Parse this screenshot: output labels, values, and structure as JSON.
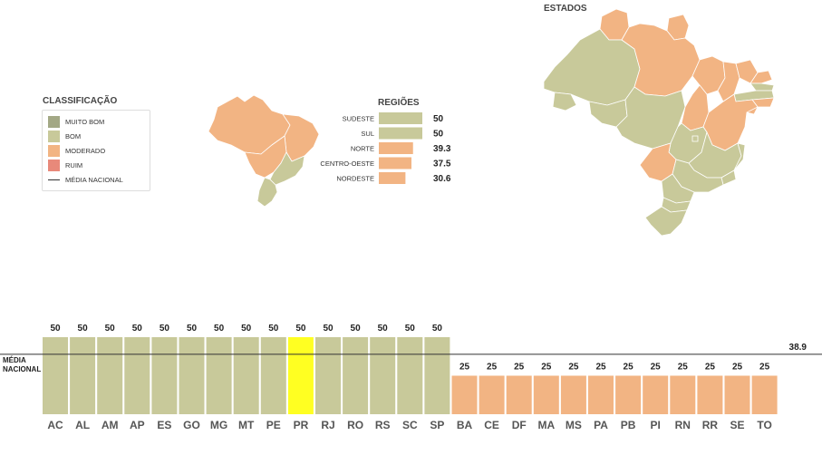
{
  "legend": {
    "title": "CLASSIFICAÇÃO",
    "items": [
      {
        "label": "MUITO BOM",
        "color": "#a3a885"
      },
      {
        "label": "BOM",
        "color": "#c8c99a"
      },
      {
        "label": "MODERADO",
        "color": "#f2b483"
      },
      {
        "label": "RUIM",
        "color": "#e8897a"
      }
    ],
    "line_label": "MÉDIA NACIONAL"
  },
  "maps": {
    "states_title": "ESTADOS"
  },
  "colors": {
    "bom": "#c8c99a",
    "moderado": "#f2b483",
    "highlight": "#ffff22",
    "bom_stroke": "#b4b688",
    "moderado_stroke": "#e0a070"
  },
  "chart_data": [
    {
      "type": "bar",
      "orientation": "horizontal",
      "title": "REGIÕES",
      "categories": [
        "SUDESTE",
        "SUL",
        "NORTE",
        "CENTRO-OESTE",
        "NORDESTE"
      ],
      "values": [
        50,
        50,
        39.3,
        37.5,
        30.6
      ],
      "value_labels": [
        "50",
        "50",
        "39.3",
        "37.5",
        "30.6"
      ],
      "classes": [
        "bom",
        "bom",
        "moderado",
        "moderado",
        "moderado"
      ],
      "xlim": [
        0,
        50
      ]
    },
    {
      "type": "bar",
      "categories": [
        "AC",
        "AL",
        "AM",
        "AP",
        "ES",
        "GO",
        "MG",
        "MT",
        "PE",
        "PR",
        "RJ",
        "RO",
        "RS",
        "SC",
        "SP",
        "BA",
        "CE",
        "DF",
        "MA",
        "MS",
        "PA",
        "PB",
        "PI",
        "RN",
        "RR",
        "SE",
        "TO"
      ],
      "values": [
        50,
        50,
        50,
        50,
        50,
        50,
        50,
        50,
        50,
        50,
        50,
        50,
        50,
        50,
        50,
        25,
        25,
        25,
        25,
        25,
        25,
        25,
        25,
        25,
        25,
        25,
        25
      ],
      "value_labels": [
        "50",
        "50",
        "50",
        "50",
        "50",
        "50",
        "50",
        "50",
        "50",
        "50",
        "50",
        "50",
        "50",
        "50",
        "50",
        "25",
        "25",
        "25",
        "25",
        "25",
        "25",
        "25",
        "25",
        "25",
        "25",
        "25",
        "25"
      ],
      "classes": [
        "bom",
        "bom",
        "bom",
        "bom",
        "bom",
        "bom",
        "bom",
        "bom",
        "bom",
        "highlight",
        "bom",
        "bom",
        "bom",
        "bom",
        "bom",
        "moderado",
        "moderado",
        "moderado",
        "moderado",
        "moderado",
        "moderado",
        "moderado",
        "moderado",
        "moderado",
        "moderado",
        "moderado",
        "moderado"
      ],
      "highlight": "PR",
      "ylim": [
        0,
        50
      ],
      "reference_line": {
        "label_line1": "MÉDIA",
        "label_line2": "NACIONAL",
        "value": 38.9,
        "value_label": "38.9"
      }
    }
  ]
}
